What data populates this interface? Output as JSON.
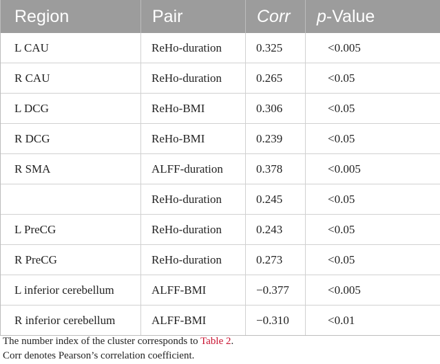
{
  "table": {
    "headers": {
      "region": "Region",
      "pair": "Pair",
      "corr": "Corr",
      "pvalue_italic": "p",
      "pvalue_rest": "-Value"
    },
    "rows": [
      {
        "region": "L CAU",
        "pair": "ReHo-duration",
        "corr": "0.325",
        "p": "<0.005"
      },
      {
        "region": "R CAU",
        "pair": "ReHo-duration",
        "corr": "0.265",
        "p": "<0.05"
      },
      {
        "region": "L DCG",
        "pair": "ReHo-BMI",
        "corr": "0.306",
        "p": "<0.05"
      },
      {
        "region": "R DCG",
        "pair": "ReHo-BMI",
        "corr": "0.239",
        "p": "<0.05"
      },
      {
        "region": "R SMA",
        "pair": "ALFF-duration",
        "corr": "0.378",
        "p": "<0.005"
      },
      {
        "region": "",
        "pair": "ReHo-duration",
        "corr": "0.245",
        "p": "<0.05"
      },
      {
        "region": "L PreCG",
        "pair": "ReHo-duration",
        "corr": "0.243",
        "p": "<0.05"
      },
      {
        "region": "R PreCG",
        "pair": "ReHo-duration",
        "corr": "0.273",
        "p": "<0.05"
      },
      {
        "region": "L inferior cerebellum",
        "pair": "ALFF-BMI",
        "corr": "−0.377",
        "p": "<0.005"
      },
      {
        "region": "R inferior cerebellum",
        "pair": "ALFF-BMI",
        "corr": "−0.310",
        "p": "<0.01"
      }
    ]
  },
  "footnotes": {
    "line1_prefix": "The number index of the cluster corresponds to ",
    "line1_link": "Table 2",
    "line1_suffix": ".",
    "line2": "Corr denotes Pearson’s correlation coefficient."
  }
}
